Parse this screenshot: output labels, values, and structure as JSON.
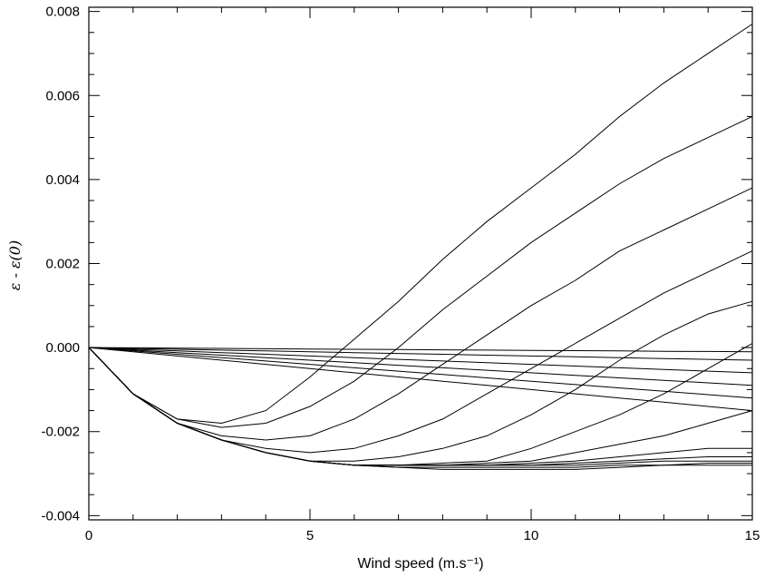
{
  "chart_data": {
    "type": "line",
    "title": "",
    "xlabel": "Wind speed (m.s⁻¹)",
    "ylabel": "ε - ε(0)",
    "xlim": [
      0,
      15
    ],
    "ylim": [
      -0.0041,
      0.0081
    ],
    "x_ticks": [
      "0",
      "5",
      "10",
      "15"
    ],
    "y_ticks": [
      "-0.004",
      "-0.002",
      "0.000",
      "0.002",
      "0.004",
      "0.006",
      "0.008"
    ],
    "grid": false,
    "line_color": "#000000",
    "x": [
      0,
      1,
      2,
      3,
      4,
      5,
      6,
      7,
      8,
      9,
      10,
      11,
      12,
      13,
      14,
      15
    ],
    "series": [
      {
        "values": [
          0,
          -0.0011,
          -0.0018,
          -0.0022,
          -0.0025,
          -0.0027,
          -0.0028,
          -0.00285,
          -0.0029,
          -0.0029,
          -0.0029,
          -0.0029,
          -0.00285,
          -0.0028,
          -0.0028,
          -0.0028
        ]
      },
      {
        "values": [
          0,
          -0.0011,
          -0.0018,
          -0.0022,
          -0.0025,
          -0.0027,
          -0.0028,
          -0.00285,
          -0.00285,
          -0.00285,
          -0.00285,
          -0.00285,
          -0.0028,
          -0.0028,
          -0.00275,
          -0.00275
        ]
      },
      {
        "values": [
          0,
          -0.0011,
          -0.0018,
          -0.0022,
          -0.0025,
          -0.0027,
          -0.0028,
          -0.0028,
          -0.0028,
          -0.0028,
          -0.0028,
          -0.0028,
          -0.00275,
          -0.0027,
          -0.0027,
          -0.0027
        ]
      },
      {
        "values": [
          0,
          -0.0011,
          -0.0018,
          -0.0022,
          -0.0025,
          -0.0027,
          -0.0028,
          -0.0028,
          -0.0028,
          -0.0028,
          -0.0028,
          -0.00275,
          -0.0027,
          -0.00265,
          -0.0026,
          -0.0026
        ]
      },
      {
        "values": [
          0,
          -0.0011,
          -0.0018,
          -0.0022,
          -0.0025,
          -0.0027,
          -0.0028,
          -0.0028,
          -0.0028,
          -0.0028,
          -0.00275,
          -0.0027,
          -0.0026,
          -0.0025,
          -0.0024,
          -0.0024
        ]
      },
      {
        "values": [
          0,
          -0.0011,
          -0.0018,
          -0.0022,
          -0.0025,
          -0.0027,
          -0.0028,
          -0.0028,
          -0.0028,
          -0.00275,
          -0.0027,
          -0.0025,
          -0.0023,
          -0.0021,
          -0.0018,
          -0.0015
        ]
      },
      {
        "values": [
          0,
          -0.0011,
          -0.0018,
          -0.0022,
          -0.0025,
          -0.0027,
          -0.0028,
          -0.0028,
          -0.00275,
          -0.0027,
          -0.0024,
          -0.002,
          -0.0016,
          -0.0011,
          -0.0005,
          0.0001
        ]
      },
      {
        "values": [
          0,
          -0.0011,
          -0.0018,
          -0.0022,
          -0.0025,
          -0.0027,
          -0.0027,
          -0.0026,
          -0.0024,
          -0.0021,
          -0.0016,
          -0.001,
          -0.0003,
          0.0003,
          0.0008,
          0.0011
        ]
      },
      {
        "values": [
          0,
          -0.0011,
          -0.0018,
          -0.0022,
          -0.0024,
          -0.0025,
          -0.0024,
          -0.0021,
          -0.0017,
          -0.0011,
          -0.0005,
          0.0001,
          0.0007,
          0.0013,
          0.0018,
          0.0023
        ]
      },
      {
        "values": [
          0,
          -0.0011,
          -0.0018,
          -0.0021,
          -0.0022,
          -0.0021,
          -0.0017,
          -0.0011,
          -0.0004,
          0.0003,
          0.001,
          0.0016,
          0.0023,
          0.0028,
          0.0033,
          0.0038
        ]
      },
      {
        "values": [
          0,
          -0.0011,
          -0.0017,
          -0.0019,
          -0.0018,
          -0.0014,
          -0.0008,
          0.0,
          0.0009,
          0.0017,
          0.0025,
          0.0032,
          0.0039,
          0.0045,
          0.005,
          0.0055
        ]
      },
      {
        "values": [
          0,
          -0.0011,
          -0.0017,
          -0.0018,
          -0.0015,
          -0.0007,
          0.0002,
          0.0011,
          0.0021,
          0.003,
          0.0038,
          0.0046,
          0.0055,
          0.0063,
          0.007,
          0.0077
        ]
      },
      {
        "values": [
          0,
          -0.0001,
          -0.0002,
          -0.0003,
          -0.0004,
          -0.0005,
          -0.0006,
          -0.0007,
          -0.0008,
          -0.0009,
          -0.001,
          -0.0011,
          -0.0012,
          -0.0013,
          -0.0014,
          -0.0015
        ]
      },
      {
        "values": [
          0,
          -8e-05,
          -0.00016,
          -0.00024,
          -0.00032,
          -0.0004,
          -0.00048,
          -0.00056,
          -0.00064,
          -0.00072,
          -0.0008,
          -0.00088,
          -0.00096,
          -0.00104,
          -0.00112,
          -0.0012
        ]
      },
      {
        "values": [
          0,
          -6e-05,
          -0.00012,
          -0.00018,
          -0.00024,
          -0.0003,
          -0.00036,
          -0.00042,
          -0.00048,
          -0.00054,
          -0.0006,
          -0.00066,
          -0.00072,
          -0.00078,
          -0.00084,
          -0.0009
        ]
      },
      {
        "values": [
          0,
          -4e-05,
          -8e-05,
          -0.00012,
          -0.00016,
          -0.0002,
          -0.00024,
          -0.00028,
          -0.00032,
          -0.00036,
          -0.0004,
          -0.00044,
          -0.00048,
          -0.00052,
          -0.00056,
          -0.0006
        ]
      },
      {
        "values": [
          0,
          -2e-05,
          -4e-05,
          -6e-05,
          -8e-05,
          -0.0001,
          -0.00012,
          -0.00014,
          -0.00016,
          -0.00018,
          -0.0002,
          -0.00022,
          -0.00024,
          -0.00026,
          -0.00028,
          -0.0003
        ]
      },
      {
        "values": [
          0,
          -7e-06,
          -1.3e-05,
          -2e-05,
          -2.7e-05,
          -3.3e-05,
          -4e-05,
          -4.7e-05,
          -5.3e-05,
          -6e-05,
          -6.7e-05,
          -7.3e-05,
          -8e-05,
          -8.7e-05,
          -9.3e-05,
          -0.0001
        ]
      }
    ]
  }
}
